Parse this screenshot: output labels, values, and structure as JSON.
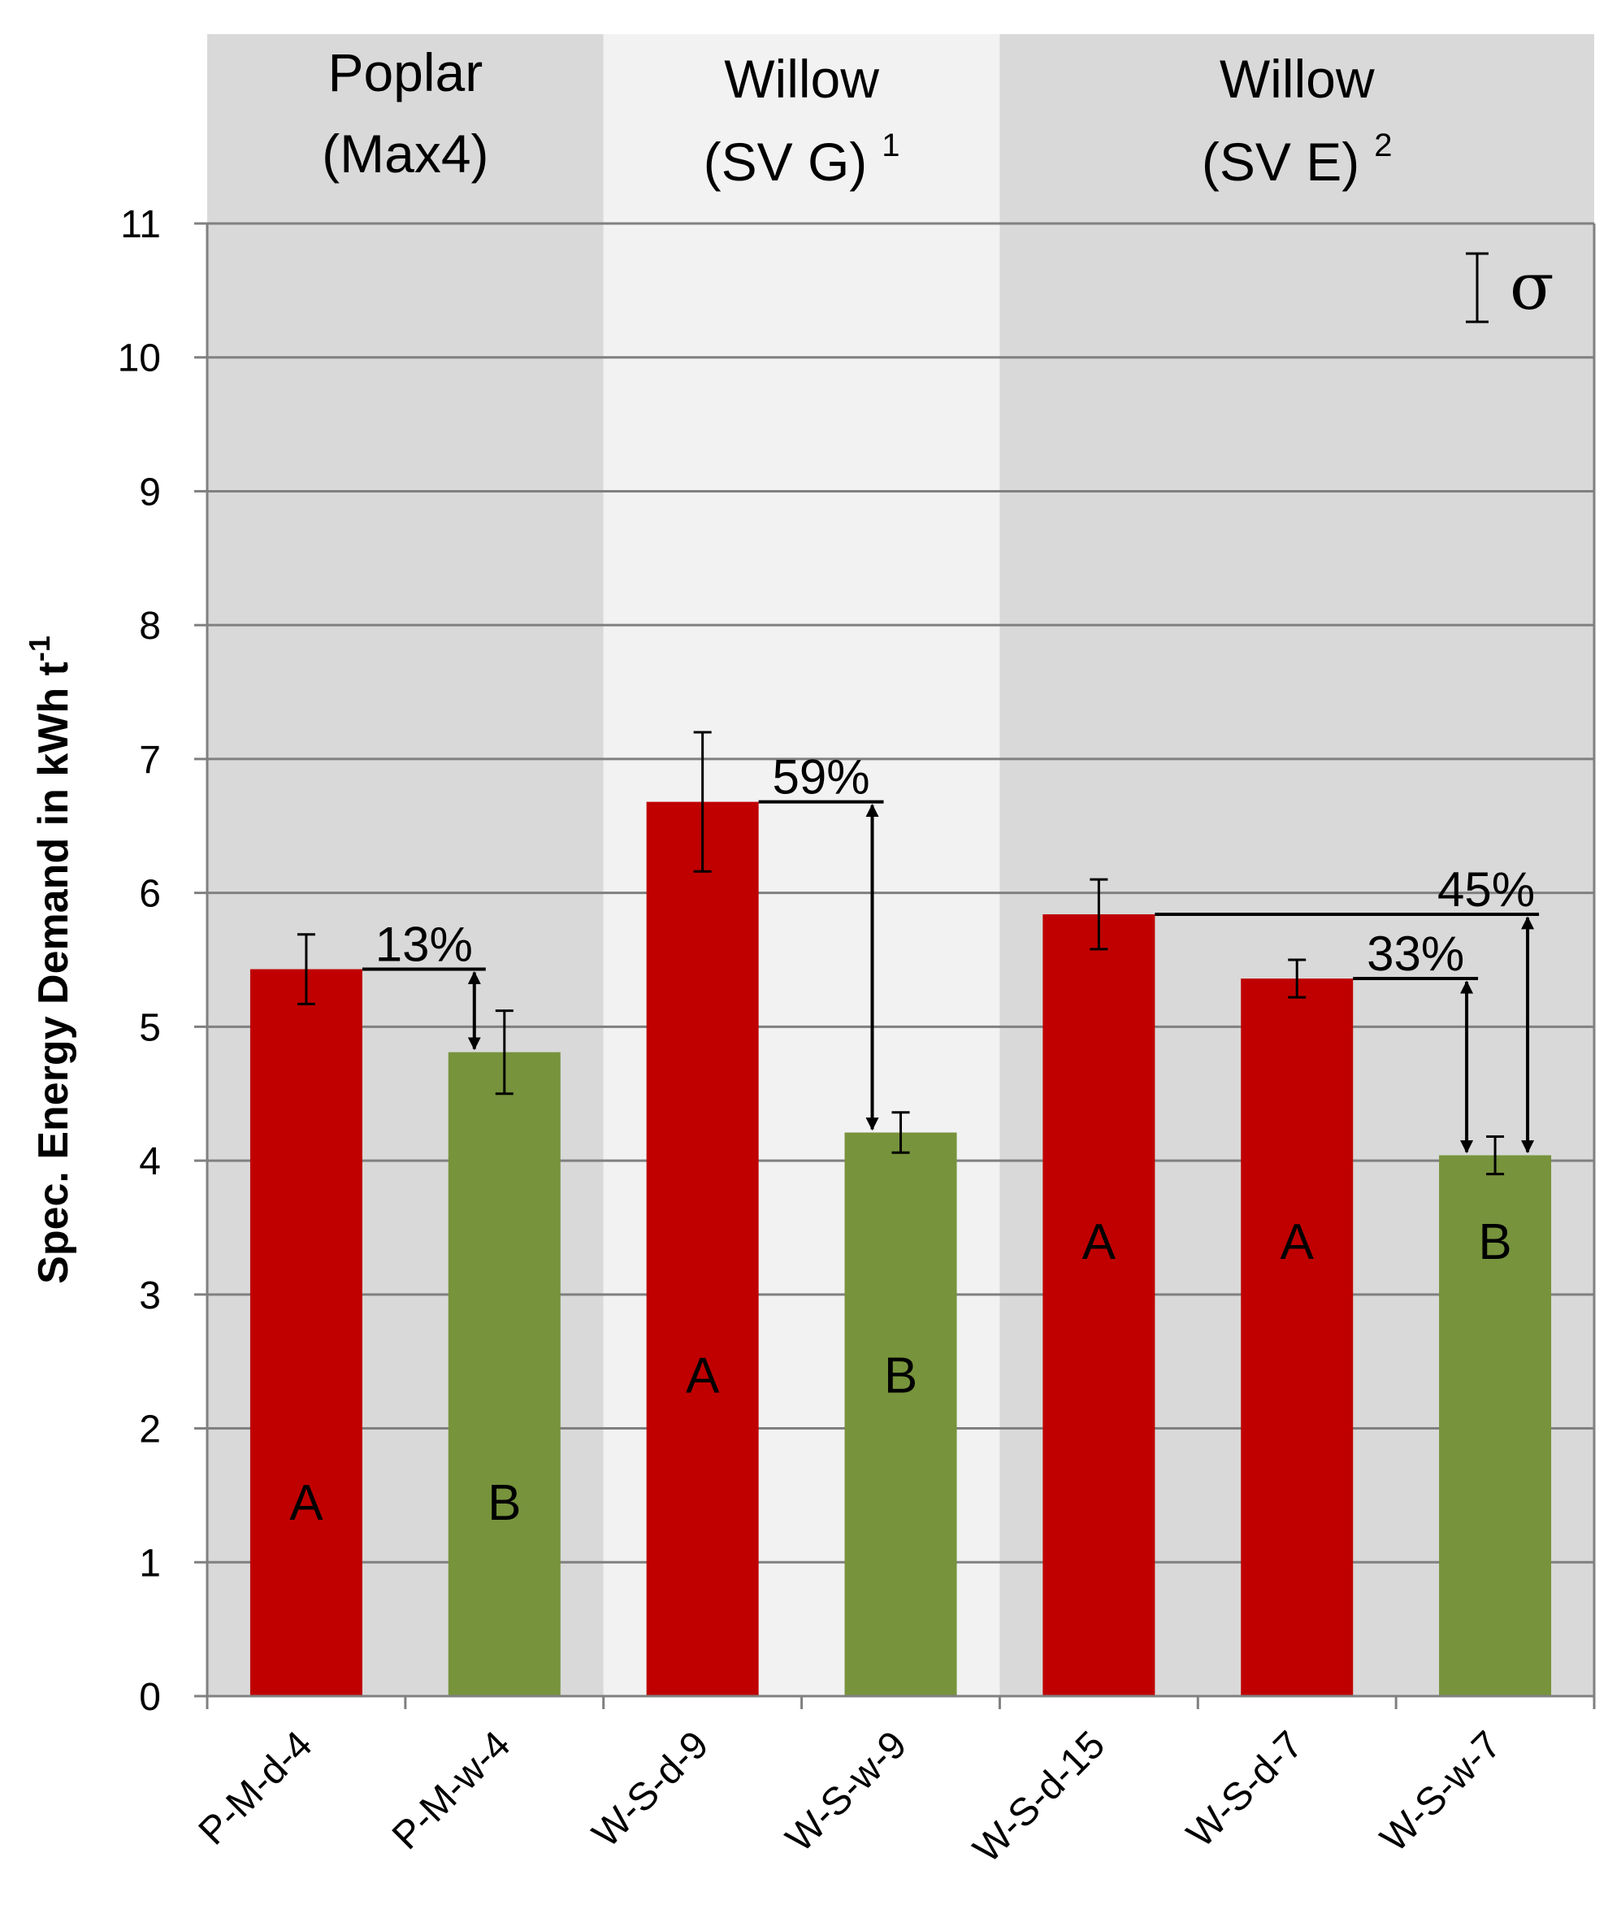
{
  "chart_data": {
    "type": "bar",
    "ylabel": "Spec. Energy Demand in kWh  t",
    "ylabel_sup": "-1",
    "ylim": [
      0,
      11
    ],
    "yticks": [
      0,
      1,
      2,
      3,
      4,
      5,
      6,
      7,
      8,
      9,
      10,
      11
    ],
    "ytick_labels": [
      "0",
      "1",
      "2",
      "3",
      "4",
      "5",
      "6",
      "7",
      "8",
      "9",
      "10",
      "11"
    ],
    "grid": true,
    "categories": [
      "P-M-d-4",
      "P-M-w-4",
      "W-S-d-9",
      "W-S-w-9",
      "W-S-d-15",
      "W-S-d-7",
      "W-S-w-7"
    ],
    "values": [
      5.43,
      4.81,
      6.68,
      4.21,
      5.84,
      5.36,
      4.04
    ],
    "errors": [
      0.26,
      0.31,
      0.52,
      0.15,
      0.26,
      0.14,
      0.14
    ],
    "bar_status": [
      "dry",
      "wet",
      "dry",
      "wet",
      "dry",
      "dry",
      "wet"
    ],
    "letters": [
      "A",
      "B",
      "A",
      "B",
      "A",
      "A",
      "B"
    ],
    "letter_values": [
      1.45,
      1.45,
      2.4,
      2.4,
      3.4,
      3.4,
      3.4
    ],
    "colors": {
      "dry": "#c00000",
      "wet": "#77933c",
      "group_dark": "#d9d9d9",
      "group_light": "#f2f2f2",
      "grid": "#808080"
    },
    "groups": [
      {
        "name": "Poplar",
        "variety": "(Max4)",
        "sup": "",
        "start": 0,
        "end": 1,
        "shade": "dark"
      },
      {
        "name": "Willow",
        "variety": "(SV G)",
        "sup": "1",
        "start": 2,
        "end": 3,
        "shade": "light"
      },
      {
        "name": "Willow",
        "variety": "(SV E)",
        "sup": "2",
        "start": 4,
        "end": 6,
        "shade": "dark"
      }
    ],
    "comparisons": [
      {
        "label": "13%",
        "from": 0,
        "to": 1
      },
      {
        "label": "59%",
        "from": 2,
        "to": 3
      },
      {
        "label": "33%",
        "from": 5,
        "to": 6
      },
      {
        "label": "45%",
        "from": 4,
        "to": 6
      }
    ],
    "legend_symbol": "σ",
    "legend_position": "top-right"
  }
}
